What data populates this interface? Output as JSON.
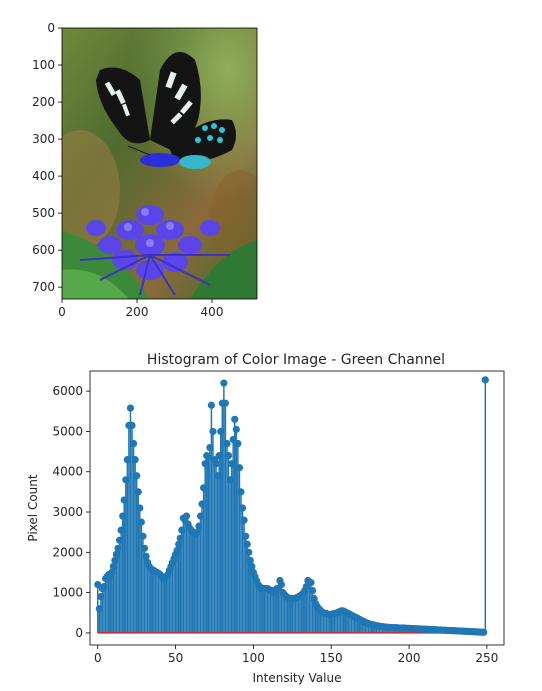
{
  "image_panel": {
    "y_ticks": [
      "0",
      "100",
      "200",
      "300",
      "400",
      "500",
      "600",
      "700"
    ],
    "x_ticks": [
      "0",
      "200",
      "400"
    ],
    "image_subject": "butterfly on blue-violet flower cluster",
    "colors": {
      "background_green": "#4f6b2e",
      "background_brown": "#8a6a3a",
      "wing_black": "#141414",
      "wing_spots": "#e8f0f0",
      "wing_cyan": "#2bc6d6",
      "body_blue": "#2b2fd8",
      "flower_violet": "#5b45e8",
      "leaf_green": "#3b8a3a"
    }
  },
  "chart_data": {
    "type": "stem",
    "title": "Histogram of Color Image - Green Channel",
    "xlabel": "Intensity Value",
    "ylabel": "Pixel Count",
    "xlim": [
      -5,
      261
    ],
    "ylim": [
      -300,
      6500
    ],
    "x_ticks": [
      0,
      50,
      100,
      150,
      200,
      250
    ],
    "y_ticks": [
      0,
      1000,
      2000,
      3000,
      4000,
      5000,
      6000
    ],
    "colors": {
      "stem": "#1f77b4",
      "baseline": "#d62728"
    },
    "x_start": 0,
    "values": [
      1200,
      600,
      900,
      1100,
      1150,
      1350,
      1400,
      1450,
      1400,
      1500,
      1650,
      1800,
      1950,
      2100,
      2300,
      2550,
      2900,
      3300,
      3800,
      4300,
      5150,
      5580,
      5150,
      4700,
      4300,
      3900,
      3500,
      3100,
      2750,
      2400,
      2100,
      1900,
      1750,
      1650,
      1600,
      1550,
      1550,
      1520,
      1500,
      1480,
      1450,
      1400,
      1350,
      1350,
      1400,
      1450,
      1550,
      1650,
      1750,
      1850,
      1950,
      2050,
      2200,
      2350,
      2550,
      2850,
      2800,
      2900,
      2700,
      2600,
      2550,
      2500,
      2450,
      2450,
      2500,
      2650,
      2900,
      3200,
      3600,
      4200,
      4400,
      4350,
      4600,
      5650,
      5000,
      4300,
      4200,
      3900,
      4400,
      5000,
      5700,
      6200,
      5700,
      4700,
      4400,
      3800,
      4200,
      4800,
      5300,
      5050,
      4700,
      4100,
      3500,
      3100,
      2800,
      2400,
      2200,
      2000,
      1800,
      1650,
      1500,
      1400,
      1300,
      1200,
      1150,
      1100,
      1100,
      1100,
      1100,
      1100,
      1080,
      1050,
      1050,
      1000,
      1050,
      1100,
      1100,
      1300,
      1200,
      1000,
      950,
      900,
      880,
      860,
      850,
      850,
      850,
      860,
      880,
      900,
      920,
      950,
      980,
      1050,
      1150,
      1300,
      1250,
      1250,
      1050,
      850,
      720,
      650,
      600,
      560,
      520,
      500,
      480,
      480,
      460,
      450,
      460,
      470,
      480,
      490,
      500,
      520,
      540,
      550,
      540,
      520,
      500,
      480,
      460,
      440,
      420,
      400,
      380,
      360,
      340,
      320,
      300,
      280,
      260,
      240,
      230,
      220,
      210,
      200,
      190,
      180,
      170,
      165,
      160,
      155,
      150,
      145,
      140,
      138,
      136,
      134,
      132,
      130,
      128,
      126,
      124,
      122,
      120,
      118,
      116,
      114,
      112,
      110,
      108,
      106,
      104,
      102,
      100,
      98,
      96,
      94,
      92,
      90,
      88,
      86,
      84,
      82,
      80,
      78,
      76,
      74,
      72,
      70,
      68,
      66,
      64,
      62,
      60,
      58,
      56,
      54,
      52,
      50,
      48,
      46,
      44,
      42,
      40,
      38,
      36,
      34,
      32,
      30,
      28,
      26,
      24,
      22,
      20,
      18,
      15,
      6280
    ]
  }
}
